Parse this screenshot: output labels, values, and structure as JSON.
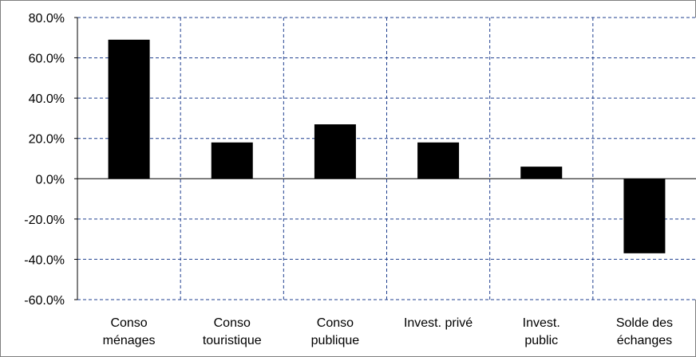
{
  "chart_data": {
    "type": "bar",
    "title": "",
    "xlabel": "",
    "ylabel": "",
    "categories": [
      [
        "Conso",
        "ménages"
      ],
      [
        "Conso",
        "touristique"
      ],
      [
        "Conso",
        "publique"
      ],
      [
        "Invest. privé"
      ],
      [
        "Invest.",
        "public"
      ],
      [
        "Solde des",
        "échanges"
      ]
    ],
    "values": [
      0.69,
      0.18,
      0.27,
      0.18,
      0.06,
      -0.37
    ],
    "ylim": [
      -0.6,
      0.8
    ],
    "yticks": [
      0.8,
      0.6,
      0.4,
      0.2,
      0.0,
      -0.2,
      -0.4,
      -0.6
    ],
    "ytick_labels": [
      "80.0%",
      "60.0%",
      "40.0%",
      "20.0%",
      "0.0%",
      "-20.0%",
      "-40.0%",
      "-60.0%"
    ],
    "grid": true,
    "legend": "none",
    "colors": {
      "bar": "#000000",
      "grid": "#1f3f8f",
      "axis": "#000000"
    }
  }
}
